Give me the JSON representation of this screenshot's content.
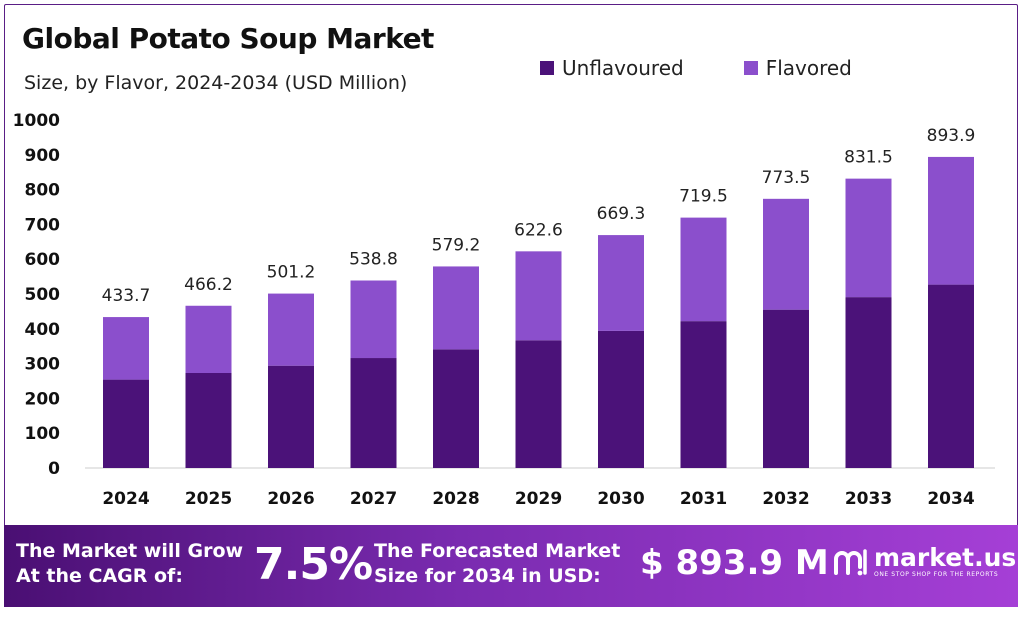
{
  "header": {
    "title": "Global Potato Soup Market",
    "subtitle": "Size, by Flavor, 2024-2034 (USD Million)"
  },
  "legend": [
    {
      "label": "Unflavoured",
      "color": "#4b1279"
    },
    {
      "label": "Flavored",
      "color": "#8b4fcc"
    }
  ],
  "chart_data": {
    "type": "bar",
    "stacked": true,
    "categories": [
      "2024",
      "2025",
      "2026",
      "2027",
      "2028",
      "2029",
      "2030",
      "2031",
      "2032",
      "2033",
      "2034"
    ],
    "series": [
      {
        "name": "Unflavoured",
        "color": "#4b1279",
        "values": [
          254,
          273,
          294,
          316,
          341,
          367,
          394,
          422,
          455,
          491,
          527
        ]
      },
      {
        "name": "Flavored",
        "color": "#8b4fcc",
        "values": [
          179.7,
          193.2,
          207.2,
          222.8,
          238.2,
          255.6,
          275.3,
          297.5,
          318.5,
          340.5,
          366.9
        ]
      }
    ],
    "totals": [
      "433.7",
      "466.2",
      "501.2",
      "538.8",
      "579.2",
      "622.6",
      "669.3",
      "719.5",
      "773.5",
      "831.5",
      "893.9"
    ],
    "yticks": [
      "0",
      "100",
      "200",
      "300",
      "400",
      "500",
      "600",
      "700",
      "800",
      "900",
      "1000"
    ],
    "ylim": [
      0,
      1000
    ],
    "grid": false
  },
  "banner": {
    "grow_text": "The Market will Grow At the CAGR of:",
    "cagr": "7.5%",
    "forecast_text": "The Forecasted Market Size for 2034 in USD:",
    "forecast_value": "$ 893.9 M",
    "brand_name": "market.us",
    "brand_tagline": "ONE STOP SHOP FOR THE REPORTS"
  }
}
